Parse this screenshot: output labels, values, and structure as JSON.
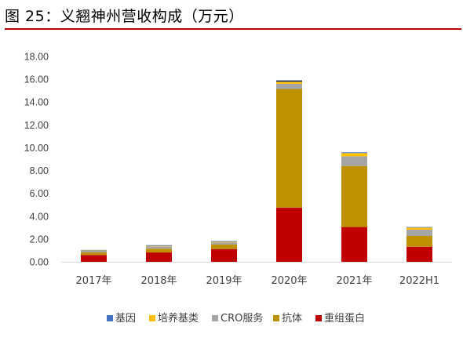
{
  "figure": {
    "title": "图 25：义翘神州营收构成（万元）",
    "accent_color": "#c00000"
  },
  "chart_data": {
    "type": "bar",
    "stacked": true,
    "categories": [
      "2017年",
      "2018年",
      "2019年",
      "2020年",
      "2021年",
      "2022H1"
    ],
    "series": [
      {
        "name": "重组蛋白",
        "color": "#c00000",
        "values": [
          0.6,
          0.82,
          1.12,
          4.75,
          3.05,
          1.32
        ]
      },
      {
        "name": "抗体",
        "color": "#bf9000",
        "values": [
          0.22,
          0.33,
          0.4,
          10.4,
          5.35,
          0.95
        ]
      },
      {
        "name": "CRO服务",
        "color": "#a5a5a5",
        "values": [
          0.15,
          0.2,
          0.18,
          0.45,
          0.85,
          0.55
        ]
      },
      {
        "name": "培养基类",
        "color": "#ffc000",
        "values": [
          0.03,
          0.05,
          0.06,
          0.18,
          0.28,
          0.18
        ]
      },
      {
        "name": "基因",
        "color": "#4472c4",
        "values": [
          0.04,
          0.06,
          0.06,
          0.12,
          0.07,
          0.05
        ]
      }
    ],
    "top_segment_color_2020": "#1f2d4d",
    "y_ticks": [
      "0.00",
      "2.00",
      "4.00",
      "6.00",
      "8.00",
      "10.00",
      "12.00",
      "14.00",
      "16.00",
      "18.00"
    ],
    "ylim": [
      0,
      18
    ],
    "legend_order": [
      "基因",
      "培养基类",
      "CRO服务",
      "抗体",
      "重组蛋白"
    ],
    "legend_position": "bottom",
    "grid": false
  }
}
